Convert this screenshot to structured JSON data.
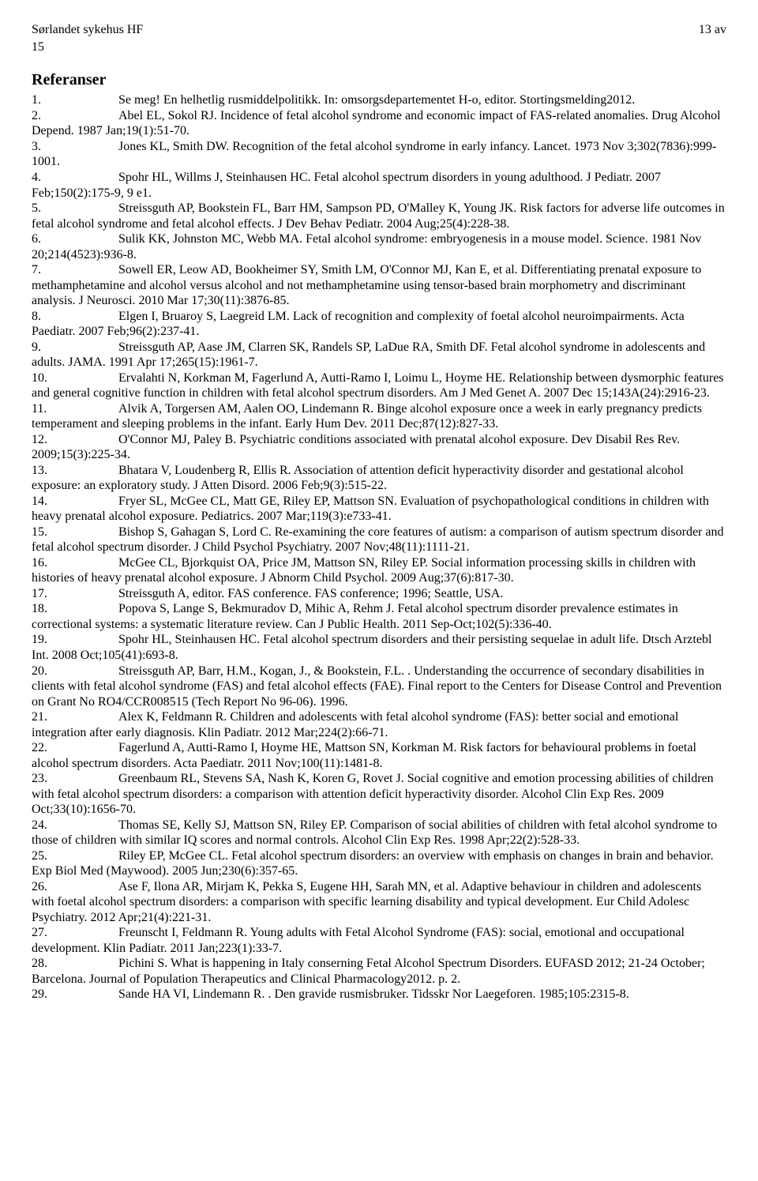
{
  "header": {
    "left1": "Sørlandet sykehus HF",
    "right1": "13 av",
    "left2": "15"
  },
  "heading": "Referanser",
  "references": [
    {
      "n": "1.",
      "text": "Se meg! En helhetlig rusmiddelpolitikk. In: omsorgsdepartementet H-o, editor. Stortingsmelding2012."
    },
    {
      "n": "2.",
      "text": "Abel EL, Sokol RJ. Incidence of fetal alcohol syndrome and economic impact of FAS-related anomalies. Drug Alcohol Depend. 1987 Jan;19(1):51-70."
    },
    {
      "n": "3.",
      "text": "Jones KL, Smith DW. Recognition of the fetal alcohol syndrome in early infancy. Lancet. 1973 Nov 3;302(7836):999-1001."
    },
    {
      "n": "4.",
      "text": "Spohr HL, Willms J, Steinhausen HC. Fetal alcohol spectrum disorders in young adulthood. J Pediatr. 2007 Feb;150(2):175-9, 9 e1."
    },
    {
      "n": "5.",
      "text": "Streissguth AP, Bookstein FL, Barr HM, Sampson PD, O'Malley K, Young JK. Risk factors for adverse life outcomes in fetal alcohol syndrome and fetal alcohol effects. J Dev Behav Pediatr. 2004 Aug;25(4):228-38."
    },
    {
      "n": "6.",
      "text": "Sulik KK, Johnston MC, Webb MA. Fetal alcohol syndrome: embryogenesis in a mouse model. Science. 1981 Nov 20;214(4523):936-8."
    },
    {
      "n": "7.",
      "text": "Sowell ER, Leow AD, Bookheimer SY, Smith LM, O'Connor MJ, Kan E, et al. Differentiating prenatal exposure to methamphetamine and alcohol versus alcohol and not methamphetamine using tensor-based brain morphometry and discriminant analysis. J Neurosci. 2010 Mar 17;30(11):3876-85."
    },
    {
      "n": "8.",
      "text": "Elgen I, Bruaroy S, Laegreid LM. Lack of recognition and complexity of foetal alcohol neuroimpairments. Acta Paediatr. 2007 Feb;96(2):237-41."
    },
    {
      "n": "9.",
      "text": "Streissguth AP, Aase JM, Clarren SK, Randels SP, LaDue RA, Smith DF. Fetal alcohol syndrome in adolescents and adults. JAMA. 1991 Apr 17;265(15):1961-7."
    },
    {
      "n": "10.",
      "text": "Ervalahti N, Korkman M, Fagerlund A, Autti-Ramo I, Loimu L, Hoyme HE. Relationship between dysmorphic features and general cognitive function in children with fetal alcohol spectrum disorders. Am J Med Genet A. 2007 Dec 15;143A(24):2916-23."
    },
    {
      "n": "11.",
      "text": "Alvik A, Torgersen AM, Aalen OO, Lindemann R. Binge alcohol exposure once a week in early pregnancy predicts temperament and sleeping problems in the infant. Early Hum Dev. 2011 Dec;87(12):827-33."
    },
    {
      "n": "12.",
      "text": "O'Connor MJ, Paley B. Psychiatric conditions associated with prenatal alcohol exposure. Dev Disabil Res Rev. 2009;15(3):225-34."
    },
    {
      "n": "13.",
      "text": "Bhatara V, Loudenberg R, Ellis R. Association of attention deficit hyperactivity disorder and gestational alcohol exposure: an exploratory study. J Atten Disord. 2006 Feb;9(3):515-22."
    },
    {
      "n": "14.",
      "text": "Fryer SL, McGee CL, Matt GE, Riley EP, Mattson SN. Evaluation of psychopathological conditions in children with heavy prenatal alcohol exposure. Pediatrics. 2007 Mar;119(3):e733-41."
    },
    {
      "n": "15.",
      "text": "Bishop S, Gahagan S, Lord C. Re-examining the core features of autism: a comparison of autism spectrum disorder and fetal alcohol spectrum disorder. J Child Psychol Psychiatry. 2007 Nov;48(11):1111-21."
    },
    {
      "n": "16.",
      "text": "McGee CL, Bjorkquist OA, Price JM, Mattson SN, Riley EP. Social information processing skills in children with histories of heavy prenatal alcohol exposure. J Abnorm Child Psychol. 2009 Aug;37(6):817-30."
    },
    {
      "n": "17.",
      "text": "Streissguth A, editor. FAS conference. FAS conference; 1996; Seattle, USA."
    },
    {
      "n": "18.",
      "text": "Popova S, Lange S, Bekmuradov D, Mihic A, Rehm J. Fetal alcohol spectrum disorder prevalence estimates in correctional systems: a systematic literature review. Can J Public Health. 2011 Sep-Oct;102(5):336-40."
    },
    {
      "n": "19.",
      "text": "Spohr HL, Steinhausen HC. Fetal alcohol spectrum disorders and their persisting sequelae in adult life. Dtsch Arztebl Int. 2008 Oct;105(41):693-8."
    },
    {
      "n": "20.",
      "text": "Streissguth AP, Barr, H.M., Kogan, J., & Bookstein, F.L. . Understanding the occurrence of secondary disabilities in clients with fetal alcohol syndrome (FAS) and fetal alcohol effects (FAE). Final report to the Centers for Disease Control and Prevention on Grant No RO4/CCR008515 (Tech Report No 96-06). 1996."
    },
    {
      "n": "21.",
      "text": "Alex K, Feldmann R. Children and adolescents with fetal alcohol syndrome (FAS): better social and emotional integration after early diagnosis. Klin Padiatr. 2012 Mar;224(2):66-71."
    },
    {
      "n": "22.",
      "text": "Fagerlund A, Autti-Ramo I, Hoyme HE, Mattson SN, Korkman M. Risk factors for behavioural problems in foetal alcohol spectrum disorders. Acta Paediatr. 2011 Nov;100(11):1481-8."
    },
    {
      "n": "23.",
      "text": "Greenbaum RL, Stevens SA, Nash K, Koren G, Rovet J. Social cognitive and emotion processing abilities of children with fetal alcohol spectrum disorders: a comparison with attention deficit hyperactivity disorder. Alcohol Clin Exp Res. 2009 Oct;33(10):1656-70."
    },
    {
      "n": "24.",
      "text": "Thomas SE, Kelly SJ, Mattson SN, Riley EP. Comparison of social abilities of children with fetal alcohol syndrome to those of children with similar IQ scores and normal controls. Alcohol Clin Exp Res. 1998 Apr;22(2):528-33."
    },
    {
      "n": "25.",
      "text": "Riley EP, McGee CL. Fetal alcohol spectrum disorders: an overview with emphasis on changes in brain and behavior. Exp Biol Med (Maywood). 2005 Jun;230(6):357-65."
    },
    {
      "n": "26.",
      "text": "Ase F, Ilona AR, Mirjam K, Pekka S, Eugene HH, Sarah MN, et al. Adaptive behaviour in children and adolescents with foetal alcohol spectrum disorders: a comparison with specific learning disability and typical development. Eur Child Adolesc Psychiatry. 2012 Apr;21(4):221-31."
    },
    {
      "n": "27.",
      "text": "Freunscht I, Feldmann R. Young adults with Fetal Alcohol Syndrome (FAS): social, emotional and occupational development. Klin Padiatr. 2011 Jan;223(1):33-7."
    },
    {
      "n": "28.",
      "text": "Pichini S. What is happening in Italy conserning Fetal Alcohol Spectrum Disorders.  EUFASD 2012; 21-24 October; Barcelona. Journal of Population Therapeutics and Clinical Pharmacology2012. p. 2."
    },
    {
      "n": "29.",
      "text": "Sande HA VI, Lindemann R. . Den gravide rusmisbruker. Tidsskr Nor Laegeforen. 1985;105:2315-8."
    }
  ]
}
